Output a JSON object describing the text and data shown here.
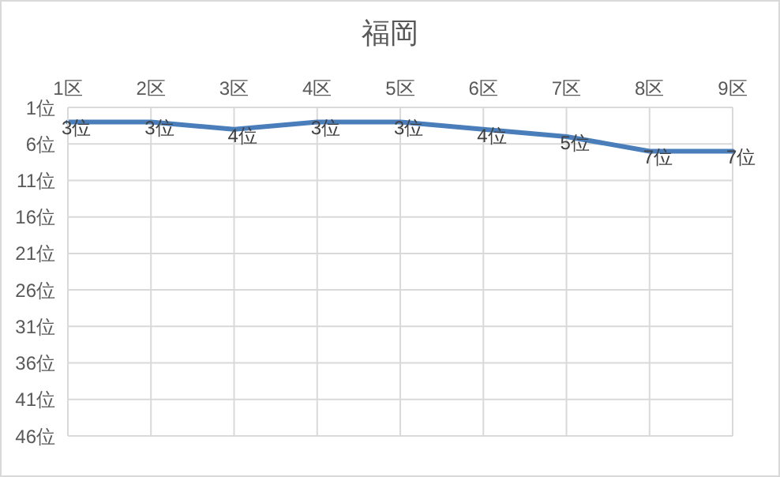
{
  "chart_data": {
    "type": "line",
    "title": "福岡",
    "categories": [
      "1区",
      "2区",
      "3区",
      "4区",
      "5区",
      "6区",
      "7区",
      "8区",
      "9区"
    ],
    "series": [
      {
        "color": "#4a7ebb",
        "values": [
          3,
          3,
          4,
          3,
          3,
          4,
          5,
          7,
          7
        ],
        "value_labels": [
          "3位",
          "3位",
          "4位",
          "3位",
          "3位",
          "4位",
          "5位",
          "7位",
          "7位"
        ]
      }
    ],
    "ylim": [
      46,
      1
    ],
    "yticks": [
      {
        "value": 1,
        "label": "1位"
      },
      {
        "value": 6,
        "label": "6位"
      },
      {
        "value": 11,
        "label": "11位"
      },
      {
        "value": 16,
        "label": "16位"
      },
      {
        "value": 21,
        "label": "21位"
      },
      {
        "value": 26,
        "label": "26位"
      },
      {
        "value": 31,
        "label": "31位"
      },
      {
        "value": 36,
        "label": "36位"
      },
      {
        "value": 41,
        "label": "41位"
      },
      {
        "value": 46,
        "label": "46位"
      }
    ],
    "grid": true,
    "legend": false,
    "marker": "none",
    "line_style": "solid"
  }
}
